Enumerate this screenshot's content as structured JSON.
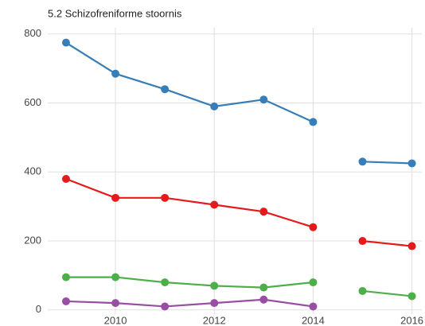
{
  "chart_data": {
    "type": "line",
    "title": "5.2 Schizofreniforme stoornis",
    "x": [
      2009,
      2010,
      2011,
      2012,
      2013,
      2014,
      null,
      2015,
      2016
    ],
    "series": [
      {
        "color": "#377eb8",
        "values": [
          775,
          685,
          640,
          590,
          610,
          545,
          null,
          430,
          425
        ]
      },
      {
        "color": "#e41a1c",
        "values": [
          380,
          325,
          325,
          305,
          285,
          240,
          null,
          200,
          185
        ]
      },
      {
        "color": "#4daf4a",
        "values": [
          95,
          95,
          80,
          70,
          65,
          80,
          null,
          55,
          40
        ]
      },
      {
        "color": "#984ea3",
        "values": [
          25,
          20,
          10,
          20,
          30,
          10,
          null,
          null,
          null
        ]
      }
    ],
    "xlim": [
      2008.63,
      2016.2
    ],
    "xticks": [
      2010,
      2012,
      2014,
      2016
    ],
    "ylim": [
      -12,
      818
    ],
    "yticks": [
      0,
      200,
      400,
      600,
      800
    ],
    "grid": true
  }
}
